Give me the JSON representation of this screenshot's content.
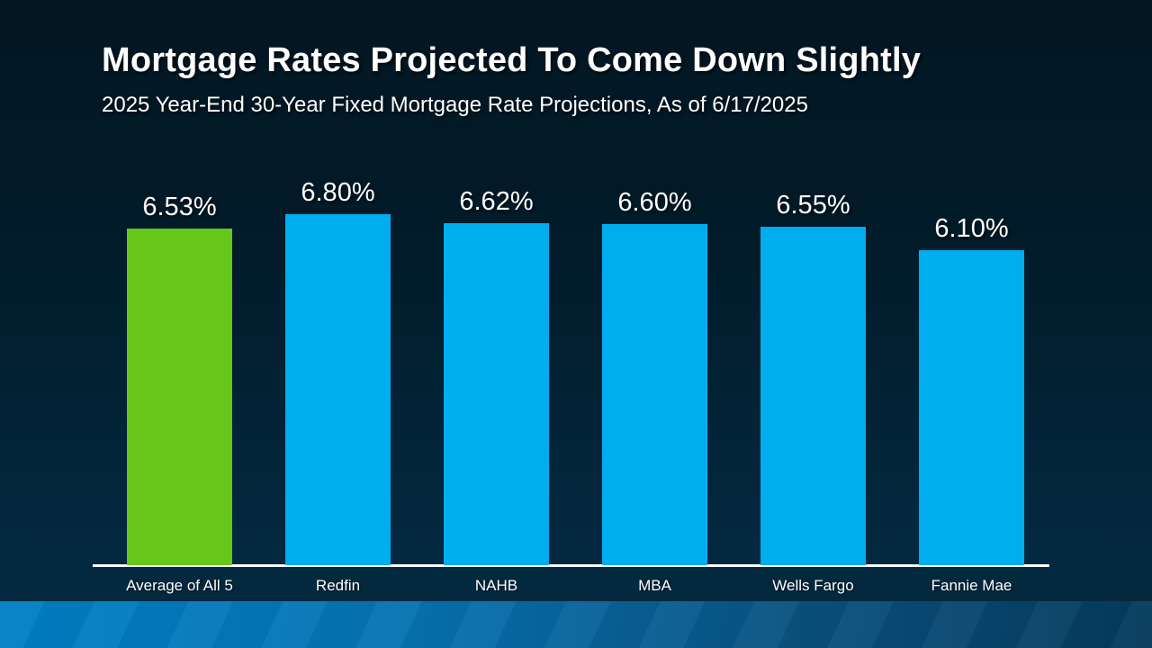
{
  "slide": {
    "title": "Mortgage Rates Projected To Come Down Slightly",
    "subtitle": "2025 Year-End 30-Year Fixed Mortgage Rate Projections, As of 6/17/2025"
  },
  "colors": {
    "bg-top": "#021621",
    "bg-bottom": "#04293d",
    "bar-blue": "#00aeef",
    "bar-green": "#66c71a",
    "axis-line": "#ffffff",
    "text": "#ffffff",
    "footer-left": "#0080c6",
    "footer-right": "#053a5c"
  },
  "chart_data": {
    "type": "bar",
    "title": "Mortgage Rates Projected To Come Down Slightly",
    "subtitle": "2025 Year-End 30-Year Fixed Mortgage Rate Projections, As of 6/17/2025",
    "categories": [
      "Average of All 5",
      "Redfin",
      "NAHB",
      "MBA",
      "Wells Fargo",
      "Fannie Mae"
    ],
    "values": [
      6.53,
      6.8,
      6.62,
      6.6,
      6.55,
      6.1
    ],
    "value_labels": [
      "6.53%",
      "6.80%",
      "6.62%",
      "6.60%",
      "6.55%",
      "6.10%"
    ],
    "bar_colors": [
      "#66c71a",
      "#00aeef",
      "#00aeef",
      "#00aeef",
      "#00aeef",
      "#00aeef"
    ],
    "highlighted_category": "Average of All 5",
    "xlabel": "",
    "ylabel": "",
    "ylim": [
      0,
      7
    ],
    "grid": false,
    "legend": false,
    "data_label_position": "above-bar"
  }
}
